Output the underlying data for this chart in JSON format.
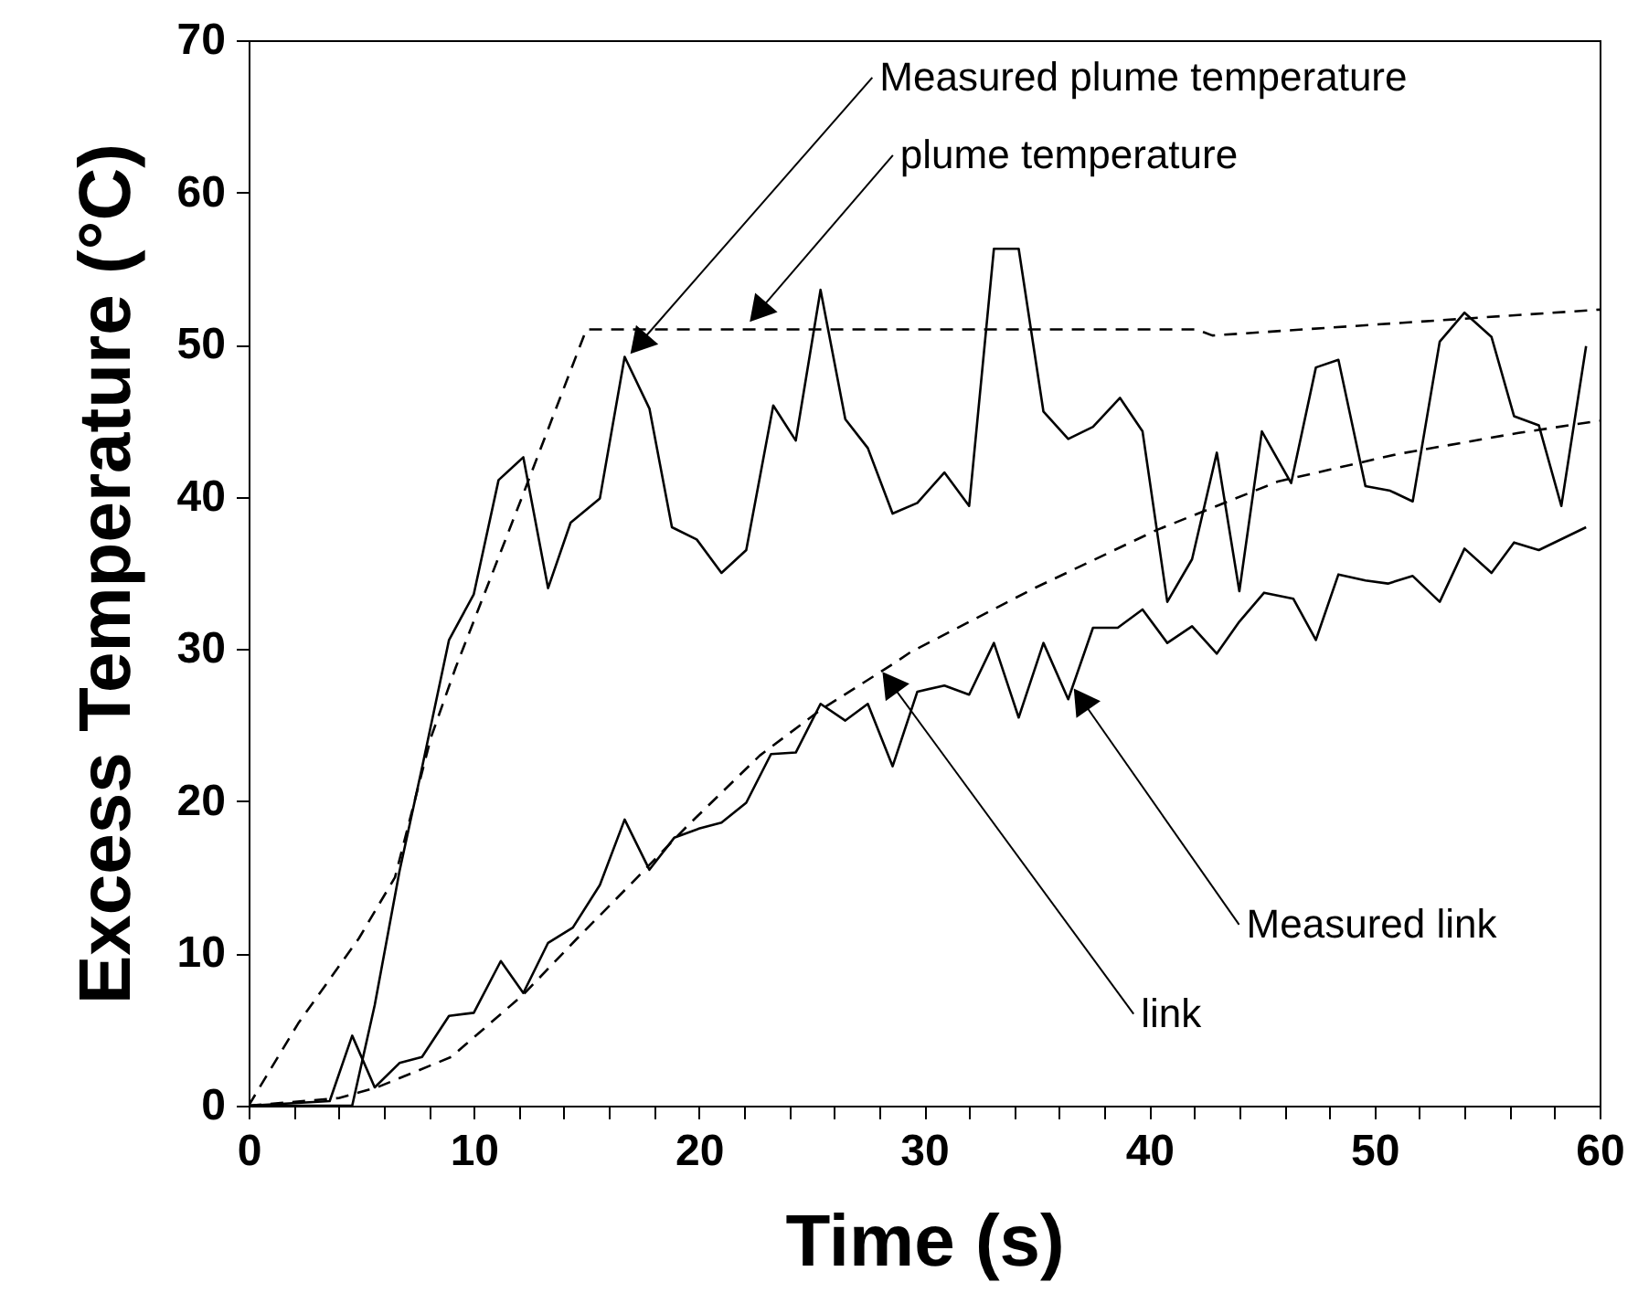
{
  "chart_data": {
    "type": "line",
    "xlabel": "Time (s)",
    "ylabel": "Excess Temperature (°C)",
    "xlim": [
      0,
      60
    ],
    "ylim": [
      0,
      70
    ],
    "xticks": [
      0,
      {
        "value": 2,
        "label": null
      },
      {
        "value": 4,
        "label": null
      },
      {
        "value": 6,
        "label": null
      },
      {
        "value": 8,
        "label": null
      },
      10,
      {
        "value": 12,
        "label": null
      },
      {
        "value": 14,
        "label": null
      },
      {
        "value": 16,
        "label": null
      },
      {
        "value": 18,
        "label": null
      },
      20,
      {
        "value": 22,
        "label": null
      },
      {
        "value": 24,
        "label": null
      },
      {
        "value": 26,
        "label": null
      },
      {
        "value": 28,
        "label": null
      },
      30,
      {
        "value": 32,
        "label": null
      },
      {
        "value": 34,
        "label": null
      },
      {
        "value": 36,
        "label": null
      },
      {
        "value": 38,
        "label": null
      },
      40,
      {
        "value": 42,
        "label": null
      },
      {
        "value": 44,
        "label": null
      },
      {
        "value": 46,
        "label": null
      },
      {
        "value": 48,
        "label": null
      },
      50,
      {
        "value": 52,
        "label": null
      },
      {
        "value": 54,
        "label": null
      },
      {
        "value": 56,
        "label": null
      },
      {
        "value": 58,
        "label": null
      },
      60
    ],
    "yticks": [
      0,
      10,
      20,
      30,
      40,
      50,
      60,
      70
    ],
    "grid": false,
    "marker": "none",
    "series": [
      {
        "color": "#000000",
        "line_style": "solid",
        "x": [
          0,
          4.6,
          5.6,
          6.7,
          7.7,
          8.9,
          10,
          11.1,
          12.2,
          13.3,
          14.3,
          15.6,
          16.7,
          17.8,
          18.8,
          19.9,
          21,
          22.1,
          23.3,
          24.3,
          25.4,
          26.5,
          27.5,
          28.6,
          29.7,
          30.9,
          32,
          33.1,
          34.2,
          35.3,
          36.4,
          37.5,
          38.7,
          39.7,
          40.8,
          41.9,
          43,
          44,
          45,
          46.3,
          47.4,
          48.4,
          49.6,
          50.7,
          51.7,
          52.9,
          54,
          55.2,
          56.2,
          57.3,
          58.3,
          59.4
        ],
        "values": [
          0,
          0,
          6.6,
          15.4,
          22.2,
          30.6,
          33.6,
          41.1,
          42.6,
          34,
          38.3,
          39.9,
          49.2,
          45.8,
          38,
          37.2,
          35,
          36.5,
          46,
          43.7,
          53.6,
          45.1,
          43.2,
          38.9,
          39.6,
          41.6,
          39.4,
          56.3,
          56.3,
          45.6,
          43.8,
          44.6,
          46.5,
          44.3,
          33.1,
          35.9,
          42.9,
          33.8,
          44.3,
          40.9,
          48.5,
          49,
          40.7,
          40.4,
          39.7,
          50.2,
          52.1,
          50.5,
          45.3,
          44.7,
          39.4,
          49.9
        ]
      },
      {
        "color": "#000000",
        "line_style": "dashed",
        "x": [
          0,
          2.2,
          4.9,
          6.5,
          8.1,
          9.2,
          12.2,
          15,
          42.1,
          42.8,
          60
        ],
        "values": [
          0,
          5.4,
          11,
          15,
          24.2,
          28.8,
          40.2,
          51,
          51,
          50.6,
          52.3
        ]
      },
      {
        "color": "#000000",
        "line_style": "solid",
        "x": [
          0,
          3.6,
          4.6,
          5.6,
          6.7,
          7.7,
          8.9,
          10,
          11.2,
          12.2,
          13.3,
          14.4,
          15.6,
          16.7,
          17.8,
          18.9,
          20,
          21,
          22.1,
          23.2,
          24.3,
          25.4,
          26.5,
          27.5,
          28.6,
          29.7,
          30.9,
          32,
          33.1,
          34.2,
          35.3,
          36.4,
          37.5,
          38.6,
          39.7,
          40.8,
          41.9,
          43,
          44,
          45.1,
          46.4,
          47.4,
          48.4,
          49.6,
          50.6,
          51.7,
          52.9,
          54,
          55.2,
          56.2,
          57.3,
          59.4
        ],
        "values": [
          0,
          0.3,
          4.6,
          1.2,
          2.8,
          3.2,
          5.9,
          6.1,
          9.5,
          7.4,
          10.7,
          11.7,
          14.5,
          18.8,
          15.5,
          17.6,
          18.2,
          18.6,
          19.9,
          23.1,
          23.2,
          26.4,
          25.3,
          26.4,
          22.3,
          27.2,
          27.6,
          27,
          30.4,
          25.5,
          30.4,
          26.7,
          31.4,
          31.4,
          32.6,
          30.4,
          31.5,
          29.7,
          31.8,
          33.7,
          33.3,
          30.6,
          34.9,
          34.5,
          34.3,
          34.8,
          33.1,
          36.6,
          35,
          37,
          36.5,
          38
        ]
      },
      {
        "color": "#000000",
        "line_style": "dashed",
        "x": [
          0,
          4,
          5.7,
          9,
          12.2,
          14.6,
          17,
          19.5,
          22.7,
          25.4,
          28.6,
          29.4,
          34.9,
          40.3,
          45.7,
          51,
          56.4,
          60
        ],
        "values": [
          0,
          0.5,
          1.2,
          3.2,
          7.3,
          11,
          14.6,
          18.4,
          23,
          26,
          29,
          29.8,
          34,
          37.8,
          41,
          42.8,
          44.2,
          45
        ]
      }
    ],
    "annotations": [
      {
        "text": "Measured plume temperature",
        "x": 16.9,
        "y": 49.3
      },
      {
        "text": "plume temperature",
        "x": 22.2,
        "y": 51.4
      },
      {
        "text": "Measured link",
        "x": 36.6,
        "y": 27.5
      },
      {
        "text": "link",
        "x": 28.1,
        "y": 28.6
      }
    ]
  }
}
